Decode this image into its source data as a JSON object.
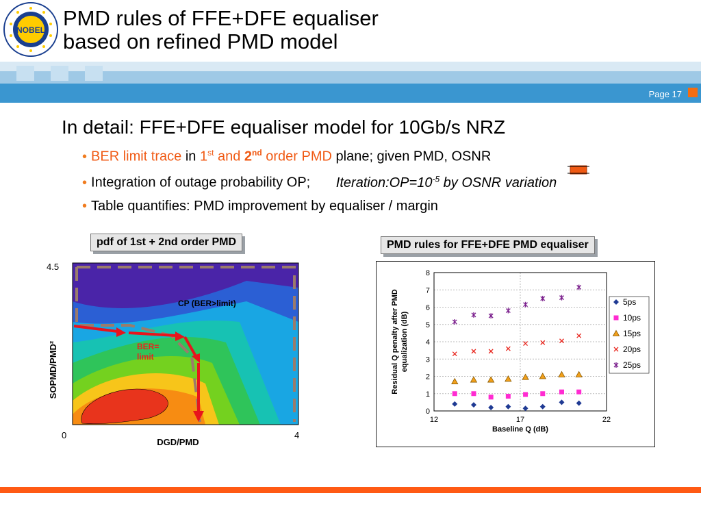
{
  "header": {
    "title_line1": "PMD rules of FFE+DFE equaliser",
    "title_line2": "based on refined PMD model",
    "page_label": "Page 17",
    "logo_text": "NOBEL"
  },
  "heading": "In detail: FFE+DFE equaliser model for 10Gb/s NRZ",
  "bullets": {
    "b1_a": "BER limit trace",
    "b1_b": " in ",
    "b1_c": "1",
    "b1_c_sup": "st",
    "b1_d": " and ",
    "b1_e": "2",
    "b1_e_sup": "nd",
    "b1_f": " order PMD",
    "b1_g": " plane; given PMD, OSNR",
    "b2_a": "Integration of outage probability OP;",
    "b2_b": "Iteration:OP=10",
    "b2_b_sup": "-5",
    "b2_c": " by OSNR variation",
    "b3": "Table quantifies: PMD improvement by equaliser / margin"
  },
  "left_panel": {
    "label": "pdf of 1st + 2nd order PMD",
    "ylabel": "SOPMD/PMD²",
    "xlabel": "DGD/PMD",
    "y_top": "4.5",
    "x_left": "0",
    "x_right": "4",
    "cp_label": "CP (BER>limit)",
    "ber_label_1": "BER=",
    "ber_label_2": "limit"
  },
  "right_panel": {
    "label": "PMD rules for FFE+DFE PMD equaliser"
  },
  "chart_data": {
    "type": "scatter",
    "xlabel": "Baseline Q (dB)",
    "ylabel": "Residual Q penalty after PMD equalization (dB)",
    "xlim": [
      12,
      22
    ],
    "ylim": [
      0,
      8
    ],
    "x_ticks": [
      "12",
      "17",
      "22"
    ],
    "y_ticks": [
      "0",
      "1",
      "2",
      "3",
      "4",
      "5",
      "6",
      "7",
      "8"
    ],
    "legend_position": "right",
    "x": [
      13.2,
      14.3,
      15.3,
      16.3,
      17.3,
      18.3,
      19.4,
      20.4
    ],
    "series": [
      {
        "name": "5ps",
        "marker": "diamond",
        "color": "#1f3a93",
        "values": [
          0.4,
          0.35,
          0.2,
          0.25,
          0.15,
          0.25,
          0.5,
          0.45
        ]
      },
      {
        "name": "10ps",
        "marker": "square",
        "color": "#ff2bd1",
        "values": [
          1.0,
          1.0,
          0.8,
          0.85,
          0.95,
          1.0,
          1.1,
          1.1
        ]
      },
      {
        "name": "15ps",
        "marker": "triangle",
        "color": "#f2a01b",
        "values": [
          1.7,
          1.8,
          1.8,
          1.85,
          1.95,
          2.0,
          2.1,
          2.1
        ]
      },
      {
        "name": "20ps",
        "marker": "x",
        "color": "#e8241c",
        "values": [
          3.3,
          3.45,
          3.45,
          3.6,
          3.9,
          3.95,
          4.05,
          4.35
        ]
      },
      {
        "name": "25ps",
        "marker": "star",
        "color": "#7a1e8c",
        "values": [
          5.15,
          5.55,
          5.5,
          5.8,
          6.15,
          6.5,
          6.55,
          7.15
        ]
      }
    ]
  }
}
